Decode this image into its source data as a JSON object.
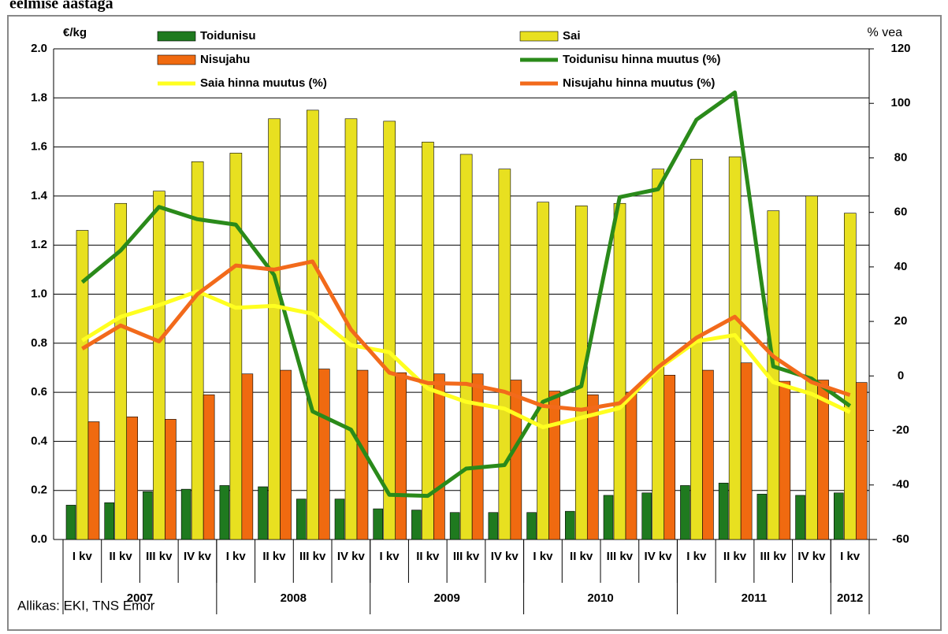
{
  "chart_data": {
    "type": "bar_line",
    "title": "eelmise aastaga",
    "y_label": "€/kg",
    "y2_label": "% vea",
    "source": "Allikas: EKI, TNS Emor",
    "categories": [
      "I kv",
      "II kv",
      "III kv",
      "IV kv",
      "I kv",
      "II kv",
      "III kv",
      "IV kv",
      "I kv",
      "II kv",
      "III kv",
      "IV kv",
      "I kv",
      "II kv",
      "III kv",
      "IV kv",
      "I kv",
      "II kv",
      "III kv",
      "IV kv",
      "I kv"
    ],
    "years": [
      "2007",
      "2008",
      "2009",
      "2010",
      "2011",
      "2012"
    ],
    "ylim": [
      0,
      2
    ],
    "yticks": [
      {
        "value": 0,
        "label": "0.0"
      },
      0.2,
      0.4,
      0.6,
      0.8,
      {
        "value": 1,
        "label": "1.0"
      },
      1.2,
      1.4,
      1.6,
      1.8,
      {
        "value": 2,
        "label": "2.0"
      }
    ],
    "y2lim": [
      -60,
      120
    ],
    "y2ticks": [
      -60,
      -40,
      -20,
      0,
      20,
      40,
      60,
      80,
      100,
      120
    ],
    "grid": true,
    "series": [
      {
        "name": "Toidunisu",
        "type": "bar",
        "color": "#1f7a1f",
        "values": [
          0.14,
          0.15,
          0.195,
          0.205,
          0.22,
          0.215,
          0.165,
          0.165,
          0.125,
          0.12,
          0.11,
          0.11,
          0.11,
          0.115,
          0.18,
          0.19,
          0.22,
          0.23,
          0.185,
          0.18,
          0.19
        ]
      },
      {
        "name": "Sai",
        "type": "bar",
        "color": "#e8e020",
        "values": [
          1.26,
          1.37,
          1.42,
          1.54,
          1.575,
          1.715,
          1.75,
          1.715,
          1.705,
          1.62,
          1.57,
          1.51,
          1.375,
          1.36,
          1.37,
          1.51,
          1.55,
          1.56,
          1.34,
          1.4,
          1.33
        ]
      },
      {
        "name": "Nisujahu",
        "type": "bar",
        "color": "#f06a10",
        "values": [
          0.48,
          0.5,
          0.49,
          0.59,
          0.675,
          0.69,
          0.695,
          0.69,
          0.68,
          0.675,
          0.675,
          0.65,
          0.605,
          0.59,
          0.6,
          0.67,
          0.69,
          0.72,
          0.645,
          0.65,
          0.64
        ]
      },
      {
        "name": "Toidunisu hinna muutus (%)",
        "type": "line",
        "axis": "y2",
        "color": "#2a8a1a",
        "values": [
          34.4,
          46,
          62,
          57.5,
          55.5,
          37,
          -13,
          -19.7,
          -43.6,
          -44,
          -34,
          -32.7,
          -9.5,
          -3.8,
          65.6,
          68.5,
          94,
          104,
          3.5,
          -1,
          -11
        ]
      },
      {
        "name": "Saia hinna muutus (%)",
        "type": "line",
        "axis": "y2",
        "color": "#ffff20",
        "values": [
          13,
          21.7,
          26,
          31,
          25,
          25.7,
          22.8,
          11.3,
          8.7,
          -4.6,
          -9.5,
          -12,
          -18.8,
          -15.3,
          -11.8,
          2.6,
          12.7,
          15,
          -2.3,
          -6.6,
          -13.3
        ]
      },
      {
        "name": "Nisujahu hinna muutus (%)",
        "type": "line",
        "axis": "y2",
        "color": "#f26a1b",
        "values": [
          10,
          18.5,
          12.7,
          30,
          40.5,
          39,
          42,
          17,
          1.2,
          -2.6,
          -2.9,
          -5.8,
          -11,
          -12.4,
          -10,
          3.2,
          14,
          21.7,
          7.2,
          -2.3,
          -7
        ]
      }
    ]
  }
}
